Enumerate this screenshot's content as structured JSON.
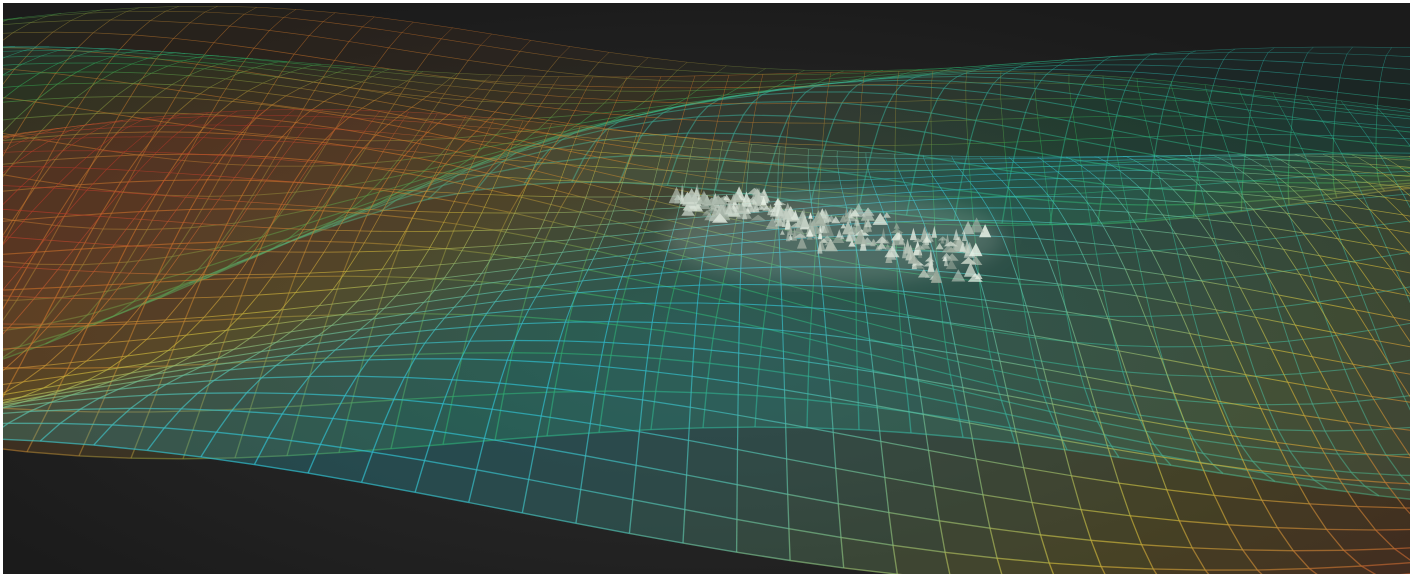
{
  "scene": {
    "subject": "3d-wireframe-terrain-surfaces",
    "background_color": "#1b1b1b",
    "background_glow_color": "#2e2e2e",
    "palette": {
      "orange": "#d6792a",
      "red": "#b7372a",
      "yellow": "#c9b53a",
      "green": "#2fae53",
      "teal": "#2bb3a8",
      "cyan": "#2fbfd0",
      "terrain_highlight": "#e8f1e6"
    },
    "layers": [
      {
        "name": "back-surface",
        "colors": [
          "#2bb3a8",
          "#2fae53",
          "#d6792a"
        ]
      },
      {
        "name": "middle-surface",
        "colors": [
          "#d6792a",
          "#2fae53",
          "#2bb3a8"
        ]
      },
      {
        "name": "front-surface",
        "colors": [
          "#b7372a",
          "#c9b53a",
          "#2fbfd0"
        ]
      }
    ],
    "terrain_model": {
      "name": "mountain-range-relief"
    }
  }
}
